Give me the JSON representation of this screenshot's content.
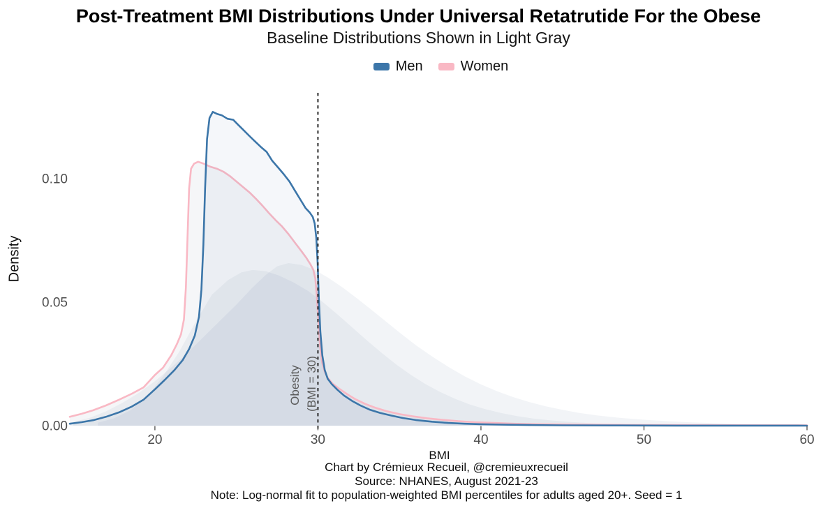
{
  "title": "Post-Treatment BMI Distributions Under Universal Retatrutide For the Obese",
  "subtitle": "Baseline Distributions Shown in Light Gray",
  "legend": {
    "items": [
      {
        "label": "Men",
        "color": "#3C76A9"
      },
      {
        "label": "Women",
        "color": "#F9B8C4"
      }
    ]
  },
  "caption": {
    "lines": [
      "Chart by Crémieux Recueil, @cremieuxrecueil",
      "Source: NHANES, August 2021-23",
      "Note: Log-normal fit to population-weighted BMI percentiles for adults aged 20+. Seed = 1"
    ]
  },
  "chart_data": {
    "type": "area",
    "title": "Post-Treatment BMI Distributions Under Universal Retatrutide For the Obese",
    "subtitle": "Baseline Distributions Shown in Light Gray",
    "xlabel": "BMI",
    "ylabel": "Density",
    "xlim": [
      14.78,
      60.17
    ],
    "ylim": [
      0,
      0.1347
    ],
    "x_ticks": [
      20,
      30,
      40,
      50,
      60
    ],
    "x_tick_labels": [
      "20",
      "30",
      "40",
      "50",
      "60"
    ],
    "y_ticks": [
      0,
      0.05,
      0.1
    ],
    "y_tick_labels": [
      "0.00",
      "0.05",
      "0.10"
    ],
    "grid": false,
    "legend_position": "top",
    "annotation": {
      "line_x": 30,
      "line_style": "dashed",
      "line_color": "#2b2b2b",
      "label_line1": "Obesity",
      "label_line2": "(BMI = 30)"
    },
    "series": [
      {
        "name": "Baseline Women",
        "role": "baseline",
        "stroke": "none",
        "fill": "rgba(140,152,178,0.11)",
        "points": [
          [
            15,
            0.0015
          ],
          [
            16,
            0.0032
          ],
          [
            17,
            0.0058
          ],
          [
            18,
            0.0092
          ],
          [
            19,
            0.0132
          ],
          [
            20,
            0.018
          ],
          [
            21,
            0.0235
          ],
          [
            22,
            0.0295
          ],
          [
            23,
            0.036
          ],
          [
            24,
            0.0425
          ],
          [
            25,
            0.049
          ],
          [
            26,
            0.056
          ],
          [
            26.8,
            0.061
          ],
          [
            27.5,
            0.0645
          ],
          [
            28.2,
            0.0658
          ],
          [
            29,
            0.065
          ],
          [
            29.8,
            0.063
          ],
          [
            30.6,
            0.06
          ],
          [
            31.5,
            0.056
          ],
          [
            32.4,
            0.0515
          ],
          [
            33.3,
            0.0468
          ],
          [
            34.2,
            0.042
          ],
          [
            35.1,
            0.0372
          ],
          [
            36,
            0.0326
          ],
          [
            37,
            0.028
          ],
          [
            38,
            0.0238
          ],
          [
            39,
            0.02
          ],
          [
            40,
            0.0167
          ],
          [
            41,
            0.0139
          ],
          [
            42,
            0.0115
          ],
          [
            43,
            0.0095
          ],
          [
            44,
            0.0078
          ],
          [
            45,
            0.0064
          ],
          [
            46,
            0.0052
          ],
          [
            47.2,
            0.0041
          ],
          [
            48.5,
            0.0032
          ],
          [
            50,
            0.0024
          ],
          [
            51.5,
            0.0018
          ],
          [
            53,
            0.0013
          ],
          [
            54.5,
            0.001
          ],
          [
            56,
            0.0007
          ],
          [
            58,
            0.0005
          ],
          [
            60,
            0.0004
          ]
        ]
      },
      {
        "name": "Baseline Men",
        "role": "baseline",
        "stroke": "none",
        "fill": "rgba(140,152,178,0.11)",
        "points": [
          [
            16.5,
            0.0012
          ],
          [
            17.5,
            0.003
          ],
          [
            18.5,
            0.0062
          ],
          [
            19.5,
            0.0118
          ],
          [
            20.5,
            0.02
          ],
          [
            21.5,
            0.03
          ],
          [
            22.5,
            0.042
          ],
          [
            23.5,
            0.053
          ],
          [
            24.5,
            0.059
          ],
          [
            25.3,
            0.062
          ],
          [
            26,
            0.063
          ],
          [
            26.8,
            0.0625
          ],
          [
            27.6,
            0.0608
          ],
          [
            28.5,
            0.058
          ],
          [
            29.4,
            0.0545
          ],
          [
            30.3,
            0.05
          ],
          [
            31.2,
            0.045
          ],
          [
            32.1,
            0.0398
          ],
          [
            33,
            0.0345
          ],
          [
            33.9,
            0.0295
          ],
          [
            34.8,
            0.0248
          ],
          [
            35.7,
            0.0206
          ],
          [
            36.6,
            0.0168
          ],
          [
            37.5,
            0.0136
          ],
          [
            38.4,
            0.0109
          ],
          [
            39.3,
            0.0086
          ],
          [
            40.2,
            0.0068
          ],
          [
            41.2,
            0.0052
          ],
          [
            42.2,
            0.0039
          ],
          [
            43.2,
            0.0029
          ],
          [
            44.2,
            0.0022
          ],
          [
            45.5,
            0.0015
          ],
          [
            47,
            0.0009
          ],
          [
            48.5,
            0.0006
          ],
          [
            50,
            0.0004
          ],
          [
            52,
            0.0002
          ],
          [
            54,
            0.0001
          ],
          [
            57,
            5e-05
          ],
          [
            60,
            2e-05
          ]
        ]
      },
      {
        "name": "Women",
        "role": "post-treatment",
        "stroke": "#F9B8C4",
        "stroke_width": 2.6,
        "fill": "rgba(140,152,178,0.09)",
        "points": [
          [
            14.78,
            0.0036
          ],
          [
            15.5,
            0.0048
          ],
          [
            16.2,
            0.0062
          ],
          [
            17,
            0.0082
          ],
          [
            17.8,
            0.0105
          ],
          [
            18.6,
            0.013
          ],
          [
            19.3,
            0.0155
          ],
          [
            20,
            0.0205
          ],
          [
            20.5,
            0.0235
          ],
          [
            21,
            0.0285
          ],
          [
            21.35,
            0.033
          ],
          [
            21.6,
            0.037
          ],
          [
            21.78,
            0.043
          ],
          [
            21.9,
            0.056
          ],
          [
            22,
            0.076
          ],
          [
            22.1,
            0.096
          ],
          [
            22.22,
            0.104
          ],
          [
            22.4,
            0.106
          ],
          [
            22.65,
            0.1068
          ],
          [
            23,
            0.106
          ],
          [
            23.4,
            0.1048
          ],
          [
            23.8,
            0.104
          ],
          [
            24.2,
            0.1028
          ],
          [
            24.6,
            0.101
          ],
          [
            25,
            0.0988
          ],
          [
            25.4,
            0.0966
          ],
          [
            25.8,
            0.0944
          ],
          [
            26.2,
            0.0918
          ],
          [
            26.6,
            0.089
          ],
          [
            27,
            0.086
          ],
          [
            27.4,
            0.0832
          ],
          [
            27.8,
            0.0806
          ],
          [
            28.2,
            0.0775
          ],
          [
            28.6,
            0.074
          ],
          [
            29,
            0.0705
          ],
          [
            29.3,
            0.0678
          ],
          [
            29.55,
            0.0652
          ],
          [
            29.72,
            0.063
          ],
          [
            29.84,
            0.0595
          ],
          [
            29.94,
            0.052
          ],
          [
            30.03,
            0.042
          ],
          [
            30.13,
            0.032
          ],
          [
            30.26,
            0.0255
          ],
          [
            30.42,
            0.0218
          ],
          [
            30.62,
            0.0192
          ],
          [
            30.9,
            0.017
          ],
          [
            31.3,
            0.015
          ],
          [
            31.8,
            0.0127
          ],
          [
            32.3,
            0.0107
          ],
          [
            32.9,
            0.0088
          ],
          [
            33.5,
            0.0073
          ],
          [
            34.2,
            0.0059
          ],
          [
            35,
            0.0047
          ],
          [
            35.8,
            0.0038
          ],
          [
            36.7,
            0.003
          ],
          [
            37.6,
            0.0024
          ],
          [
            38.6,
            0.0018
          ],
          [
            39.6,
            0.0014
          ],
          [
            40.8,
            0.0011
          ],
          [
            42,
            0.0008
          ],
          [
            43.5,
            0.0006
          ],
          [
            45,
            0.0005
          ],
          [
            47,
            0.0004
          ],
          [
            49,
            0.0003
          ],
          [
            52,
            0.00025
          ],
          [
            55,
            0.0002
          ],
          [
            57.5,
            0.00017
          ],
          [
            60,
            0.00015
          ]
        ]
      },
      {
        "name": "Men",
        "role": "post-treatment",
        "stroke": "#3C76A9",
        "stroke_width": 2.6,
        "fill": "rgba(84,120,166,0.06)",
        "points": [
          [
            14.78,
            0.0008
          ],
          [
            15.5,
            0.0014
          ],
          [
            16.2,
            0.0022
          ],
          [
            17,
            0.0036
          ],
          [
            17.8,
            0.0054
          ],
          [
            18.6,
            0.0078
          ],
          [
            19.3,
            0.0105
          ],
          [
            20,
            0.0147
          ],
          [
            20.6,
            0.0185
          ],
          [
            21.2,
            0.0225
          ],
          [
            21.7,
            0.0265
          ],
          [
            22.1,
            0.031
          ],
          [
            22.45,
            0.0365
          ],
          [
            22.7,
            0.044
          ],
          [
            22.85,
            0.055
          ],
          [
            22.97,
            0.073
          ],
          [
            23.08,
            0.096
          ],
          [
            23.2,
            0.116
          ],
          [
            23.35,
            0.1245
          ],
          [
            23.55,
            0.127
          ],
          [
            23.8,
            0.1262
          ],
          [
            24.1,
            0.1256
          ],
          [
            24.45,
            0.1242
          ],
          [
            24.8,
            0.1238
          ],
          [
            25.1,
            0.1218
          ],
          [
            25.45,
            0.1195
          ],
          [
            25.8,
            0.1172
          ],
          [
            26.15,
            0.115
          ],
          [
            26.5,
            0.1128
          ],
          [
            26.85,
            0.1108
          ],
          [
            27.2,
            0.1072
          ],
          [
            27.55,
            0.1045
          ],
          [
            27.9,
            0.1018
          ],
          [
            28.25,
            0.0988
          ],
          [
            28.6,
            0.095
          ],
          [
            28.95,
            0.0912
          ],
          [
            29.25,
            0.088
          ],
          [
            29.5,
            0.0862
          ],
          [
            29.68,
            0.0845
          ],
          [
            29.8,
            0.0818
          ],
          [
            29.9,
            0.076
          ],
          [
            29.98,
            0.066
          ],
          [
            30.06,
            0.051
          ],
          [
            30.15,
            0.038
          ],
          [
            30.27,
            0.0285
          ],
          [
            30.42,
            0.0225
          ],
          [
            30.6,
            0.019
          ],
          [
            30.85,
            0.0168
          ],
          [
            31.2,
            0.0145
          ],
          [
            31.6,
            0.0122
          ],
          [
            32.1,
            0.01
          ],
          [
            32.6,
            0.0082
          ],
          [
            33.2,
            0.0064
          ],
          [
            33.8,
            0.0052
          ],
          [
            34.5,
            0.0041
          ],
          [
            35.2,
            0.0031
          ],
          [
            36,
            0.0023
          ],
          [
            37,
            0.0016
          ],
          [
            38,
            0.0011
          ],
          [
            39,
            0.0008
          ],
          [
            40,
            0.0006
          ],
          [
            41.5,
            0.0004
          ],
          [
            43,
            0.00025
          ],
          [
            45,
            0.00015
          ],
          [
            48,
            8e-05
          ],
          [
            52,
            4e-05
          ],
          [
            56,
            2e-05
          ],
          [
            60,
            1e-05
          ]
        ]
      }
    ]
  }
}
